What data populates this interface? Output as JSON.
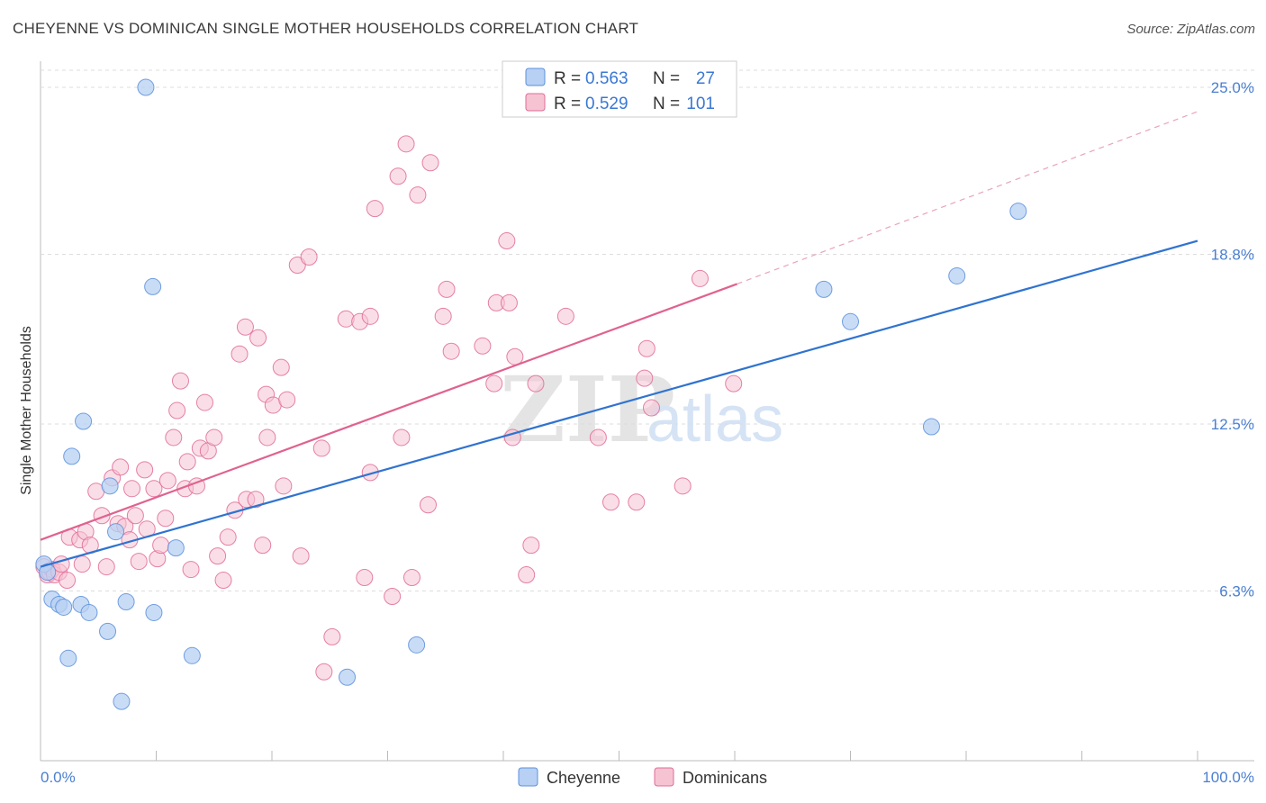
{
  "title": "CHEYENNE VS DOMINICAN SINGLE MOTHER HOUSEHOLDS CORRELATION CHART",
  "source": "Source: ZipAtlas.com",
  "watermark": {
    "zip": "ZIP",
    "atlas": "atlas"
  },
  "legend": {
    "r_label": "R =",
    "n_label": "N =",
    "items": [
      {
        "name": "Cheyenne",
        "r": "0.563",
        "n": "27",
        "color": "#5b8fdc",
        "fill": "#b7d0f3"
      },
      {
        "name": "Dominicans",
        "r": "0.529",
        "n": "101",
        "color": "#e06b95",
        "fill": "#f6c3d3"
      }
    ]
  },
  "chart_data": {
    "type": "scatter",
    "title": "CHEYENNE VS DOMINICAN SINGLE MOTHER HOUSEHOLDS CORRELATION CHART",
    "xlabel": "",
    "ylabel": "Single Mother Households",
    "xlim": [
      0,
      100
    ],
    "ylim": [
      0,
      25.5
    ],
    "x_tick_labels": [
      "0.0%",
      "100.0%"
    ],
    "y_ticks": [
      6.3,
      12.5,
      18.8,
      25.0
    ],
    "y_tick_labels": [
      "6.3%",
      "12.5%",
      "18.8%",
      "25.0%"
    ],
    "series": [
      {
        "name": "Cheyenne",
        "color": "#5b8fdc",
        "points": [
          [
            0.3,
            7.3
          ],
          [
            0.6,
            7.0
          ],
          [
            1.0,
            6.0
          ],
          [
            1.6,
            5.8
          ],
          [
            2.0,
            5.7
          ],
          [
            3.5,
            5.8
          ],
          [
            3.7,
            12.6
          ],
          [
            2.7,
            11.3
          ],
          [
            2.4,
            3.8
          ],
          [
            4.2,
            5.5
          ],
          [
            5.8,
            4.8
          ],
          [
            6.0,
            10.2
          ],
          [
            6.5,
            8.5
          ],
          [
            7.4,
            5.9
          ],
          [
            7.0,
            2.2
          ],
          [
            9.1,
            25.0
          ],
          [
            9.7,
            17.6
          ],
          [
            9.8,
            5.5
          ],
          [
            11.7,
            7.9
          ],
          [
            13.1,
            3.9
          ],
          [
            26.5,
            3.1
          ],
          [
            32.5,
            4.3
          ],
          [
            67.7,
            17.5
          ],
          [
            70.0,
            16.3
          ],
          [
            77.0,
            12.4
          ],
          [
            79.2,
            18.0
          ],
          [
            84.5,
            20.4
          ]
        ],
        "trend": {
          "x": [
            0,
            100
          ],
          "y": [
            7.2,
            19.3
          ],
          "style": "solid"
        }
      },
      {
        "name": "Dominicans",
        "color": "#e06b95",
        "points": [
          [
            0.3,
            7.2
          ],
          [
            0.6,
            6.9
          ],
          [
            0.8,
            7.0
          ],
          [
            1.0,
            7.1
          ],
          [
            1.2,
            6.9
          ],
          [
            1.6,
            7.0
          ],
          [
            1.8,
            7.3
          ],
          [
            2.3,
            6.7
          ],
          [
            2.5,
            8.3
          ],
          [
            3.4,
            8.2
          ],
          [
            3.6,
            7.3
          ],
          [
            3.9,
            8.5
          ],
          [
            4.3,
            8.0
          ],
          [
            4.8,
            10.0
          ],
          [
            5.3,
            9.1
          ],
          [
            5.7,
            7.2
          ],
          [
            6.2,
            10.5
          ],
          [
            6.7,
            8.8
          ],
          [
            6.9,
            10.9
          ],
          [
            7.3,
            8.7
          ],
          [
            7.7,
            8.2
          ],
          [
            7.9,
            10.1
          ],
          [
            8.2,
            9.1
          ],
          [
            8.5,
            7.4
          ],
          [
            9.0,
            10.8
          ],
          [
            9.2,
            8.6
          ],
          [
            9.8,
            10.1
          ],
          [
            10.1,
            7.5
          ],
          [
            10.4,
            8.0
          ],
          [
            10.8,
            9.0
          ],
          [
            11.0,
            10.4
          ],
          [
            11.5,
            12.0
          ],
          [
            11.8,
            13.0
          ],
          [
            12.1,
            14.1
          ],
          [
            12.5,
            10.1
          ],
          [
            12.7,
            11.1
          ],
          [
            13.0,
            7.1
          ],
          [
            13.5,
            10.2
          ],
          [
            13.8,
            11.6
          ],
          [
            14.2,
            13.3
          ],
          [
            14.5,
            11.5
          ],
          [
            15.0,
            12.0
          ],
          [
            15.3,
            7.6
          ],
          [
            15.8,
            6.7
          ],
          [
            16.2,
            8.3
          ],
          [
            16.8,
            9.3
          ],
          [
            17.2,
            15.1
          ],
          [
            17.8,
            9.7
          ],
          [
            17.7,
            16.1
          ],
          [
            18.6,
            9.7
          ],
          [
            18.8,
            15.7
          ],
          [
            19.2,
            8.0
          ],
          [
            19.5,
            13.6
          ],
          [
            19.6,
            12.0
          ],
          [
            20.1,
            13.2
          ],
          [
            20.8,
            14.6
          ],
          [
            21.0,
            10.2
          ],
          [
            21.3,
            13.4
          ],
          [
            22.5,
            7.6
          ],
          [
            22.2,
            18.4
          ],
          [
            23.2,
            18.7
          ],
          [
            24.3,
            11.6
          ],
          [
            25.2,
            4.6
          ],
          [
            24.5,
            3.3
          ],
          [
            26.4,
            16.4
          ],
          [
            27.6,
            16.3
          ],
          [
            28.5,
            16.5
          ],
          [
            28.0,
            6.8
          ],
          [
            28.5,
            10.7
          ],
          [
            28.9,
            20.5
          ],
          [
            30.4,
            6.1
          ],
          [
            30.9,
            21.7
          ],
          [
            31.2,
            12.0
          ],
          [
            31.6,
            22.9
          ],
          [
            32.1,
            6.8
          ],
          [
            32.6,
            21.0
          ],
          [
            33.5,
            9.5
          ],
          [
            33.7,
            22.2
          ],
          [
            34.8,
            16.5
          ],
          [
            35.1,
            17.5
          ],
          [
            35.5,
            15.2
          ],
          [
            38.2,
            15.4
          ],
          [
            39.2,
            14.0
          ],
          [
            39.4,
            17.0
          ],
          [
            40.3,
            19.3
          ],
          [
            40.5,
            17.0
          ],
          [
            40.8,
            12.0
          ],
          [
            41.0,
            15.0
          ],
          [
            42.4,
            8.0
          ],
          [
            42.0,
            6.9
          ],
          [
            42.8,
            14.0
          ],
          [
            45.4,
            16.5
          ],
          [
            49.3,
            9.6
          ],
          [
            51.5,
            9.6
          ],
          [
            52.2,
            14.2
          ],
          [
            52.4,
            15.3
          ],
          [
            57.0,
            17.9
          ],
          [
            59.9,
            14.0
          ],
          [
            48.2,
            12.0
          ],
          [
            52.8,
            13.1
          ],
          [
            55.5,
            10.2
          ]
        ],
        "trend": {
          "x": [
            0,
            60.2
          ],
          "y": [
            8.2,
            17.7
          ],
          "style": "solid",
          "extension_x": [
            60.2,
            100
          ],
          "extension_y": [
            17.7,
            24.1
          ]
        }
      }
    ]
  }
}
